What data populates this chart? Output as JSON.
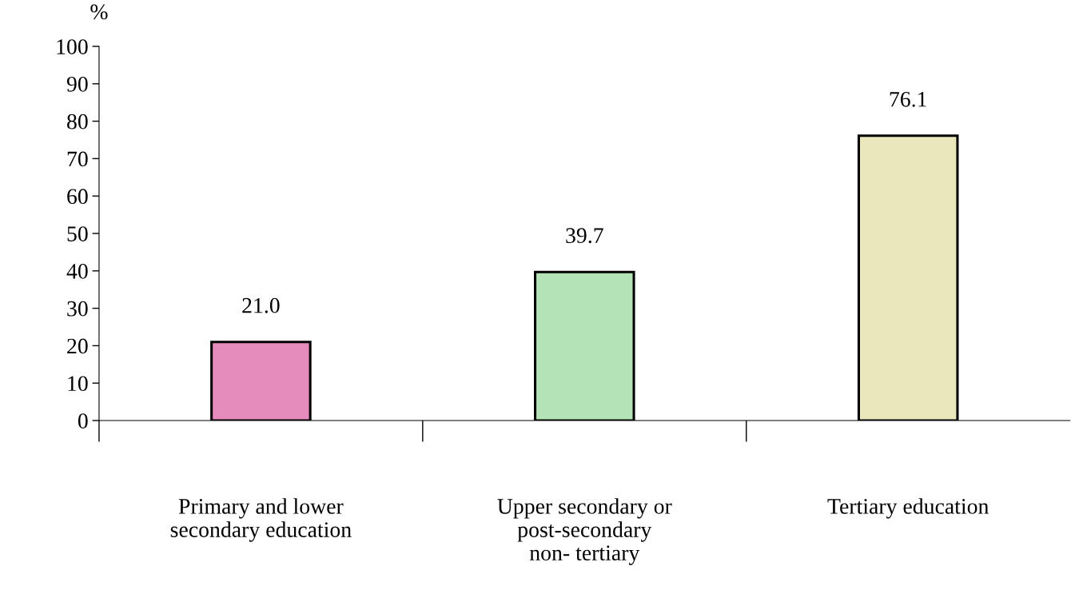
{
  "chart_data": {
    "type": "bar",
    "ylabel": "%",
    "categories": [
      "Primary and lower\nsecondary education",
      "Upper secondary or\npost-secondary\nnon- tertiary",
      "Tertiary education"
    ],
    "values": [
      21.0,
      39.7,
      76.1
    ],
    "colors": [
      "#e68cbd",
      "#b5e3b8",
      "#eae7bd"
    ],
    "value_labels": [
      "21.0",
      "39.7",
      "76.1"
    ],
    "ylim": [
      0,
      100
    ],
    "yticks": [
      0,
      10,
      20,
      30,
      40,
      50,
      60,
      70,
      80,
      90,
      100
    ],
    "grid": false,
    "legend": false
  }
}
